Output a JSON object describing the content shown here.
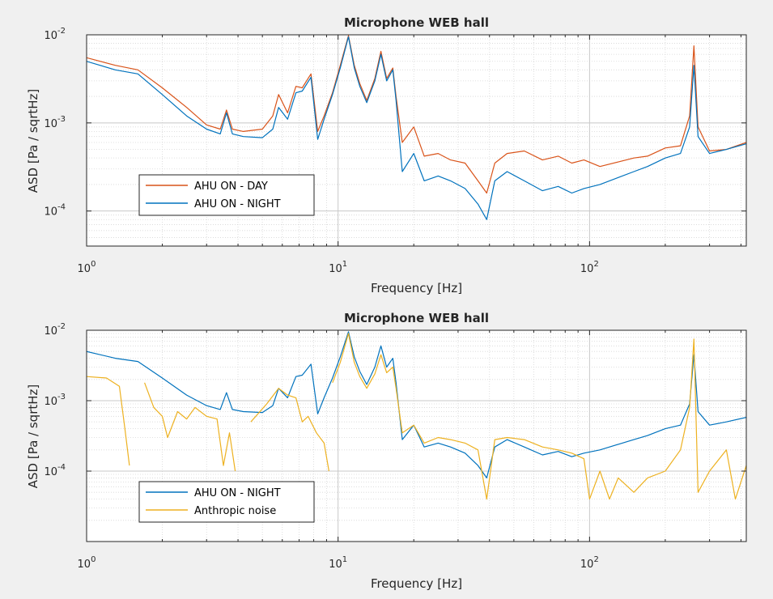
{
  "chart_data": [
    {
      "type": "line",
      "title": "Microphone WEB hall",
      "xlabel": "Frequency [Hz]",
      "ylabel": "ASD [Pa / sqrtHz]",
      "xscale": "log",
      "yscale": "log",
      "xlim": [
        1,
        420
      ],
      "ylim": [
        4e-05,
        0.01
      ],
      "grid": "on",
      "legend_position": "bottom-left",
      "xticks": [
        {
          "value": 1,
          "base": "10",
          "exp": "0"
        },
        {
          "value": 10,
          "base": "10",
          "exp": "1"
        },
        {
          "value": 100,
          "base": "10",
          "exp": "2"
        }
      ],
      "yticks": [
        {
          "value": 0.0001,
          "base": "10",
          "exp": "-4"
        },
        {
          "value": 0.001,
          "base": "10",
          "exp": "-3"
        },
        {
          "value": 0.01,
          "base": "10",
          "exp": "-2"
        }
      ],
      "series": [
        {
          "name": "AHU ON - DAY",
          "color": "#d95319",
          "x": [
            1,
            1.3,
            1.6,
            2,
            2.5,
            3,
            3.4,
            3.6,
            3.8,
            4.2,
            5,
            5.5,
            5.8,
            6.3,
            6.8,
            7.2,
            7.8,
            8.3,
            8.8,
            9.5,
            10.2,
            11,
            11.6,
            12.2,
            13,
            14,
            14.8,
            15.6,
            16.5,
            17,
            18,
            20,
            22,
            25,
            28,
            32,
            36,
            39,
            42,
            47,
            55,
            65,
            75,
            85,
            95,
            110,
            130,
            150,
            170,
            200,
            230,
            250,
            260,
            270,
            300,
            350,
            420
          ],
          "values": [
            0.0055,
            0.0045,
            0.004,
            0.0025,
            0.0015,
            0.00095,
            0.00085,
            0.0014,
            0.00085,
            0.0008,
            0.00085,
            0.0012,
            0.0021,
            0.0013,
            0.0026,
            0.0025,
            0.0036,
            0.0008,
            0.0012,
            0.0022,
            0.0045,
            0.0098,
            0.0045,
            0.0028,
            0.0018,
            0.0032,
            0.0065,
            0.0032,
            0.0042,
            0.002,
            0.0006,
            0.0009,
            0.00042,
            0.00045,
            0.00038,
            0.00035,
            0.00022,
            0.00016,
            0.00035,
            0.00045,
            0.00048,
            0.00038,
            0.00042,
            0.00035,
            0.00038,
            0.00032,
            0.00036,
            0.0004,
            0.00042,
            0.00052,
            0.00055,
            0.0012,
            0.0075,
            0.0009,
            0.00048,
            0.0005,
            0.0006
          ]
        },
        {
          "name": "AHU ON - NIGHT",
          "color": "#0072bd",
          "x": [
            1,
            1.3,
            1.6,
            2,
            2.5,
            3,
            3.4,
            3.6,
            3.8,
            4.2,
            5,
            5.5,
            5.8,
            6.3,
            6.8,
            7.2,
            7.8,
            8.3,
            8.8,
            9.5,
            10.2,
            11,
            11.6,
            12.2,
            13,
            14,
            14.8,
            15.6,
            16.5,
            17,
            18,
            20,
            22,
            25,
            28,
            32,
            36,
            39,
            42,
            47,
            55,
            65,
            75,
            85,
            95,
            110,
            130,
            150,
            170,
            200,
            230,
            250,
            260,
            270,
            300,
            350,
            420
          ],
          "values": [
            0.005,
            0.004,
            0.0036,
            0.0021,
            0.0012,
            0.00085,
            0.00075,
            0.0013,
            0.00075,
            0.0007,
            0.00068,
            0.00085,
            0.0015,
            0.0011,
            0.0022,
            0.0023,
            0.0033,
            0.00065,
            0.0011,
            0.0021,
            0.0042,
            0.0095,
            0.0042,
            0.0026,
            0.0017,
            0.003,
            0.006,
            0.003,
            0.004,
            0.0018,
            0.00028,
            0.00045,
            0.00022,
            0.00025,
            0.00022,
            0.00018,
            0.00012,
            8e-05,
            0.00022,
            0.00028,
            0.00022,
            0.00017,
            0.00019,
            0.00016,
            0.00018,
            0.0002,
            0.00024,
            0.00028,
            0.00032,
            0.0004,
            0.00045,
            0.0009,
            0.0045,
            0.0007,
            0.00045,
            0.0005,
            0.00058
          ]
        }
      ]
    },
    {
      "type": "line",
      "title": "Microphone WEB hall",
      "xlabel": "Frequency [Hz]",
      "ylabel": "ASD [Pa / sqrtHz]",
      "xscale": "log",
      "yscale": "log",
      "xlim": [
        1,
        420
      ],
      "ylim": [
        1e-05,
        0.01
      ],
      "grid": "on",
      "legend_position": "bottom-left",
      "xticks": [
        {
          "value": 1,
          "base": "10",
          "exp": "0"
        },
        {
          "value": 10,
          "base": "10",
          "exp": "1"
        },
        {
          "value": 100,
          "base": "10",
          "exp": "2"
        }
      ],
      "yticks": [
        {
          "value": 0.0001,
          "base": "10",
          "exp": "-4"
        },
        {
          "value": 0.001,
          "base": "10",
          "exp": "-3"
        },
        {
          "value": 0.01,
          "base": "10",
          "exp": "-2"
        }
      ],
      "series": [
        {
          "name": "AHU ON - NIGHT",
          "color": "#0072bd",
          "x": [
            1,
            1.3,
            1.6,
            2,
            2.5,
            3,
            3.4,
            3.6,
            3.8,
            4.2,
            5,
            5.5,
            5.8,
            6.3,
            6.8,
            7.2,
            7.8,
            8.3,
            8.8,
            9.5,
            10.2,
            11,
            11.6,
            12.2,
            13,
            14,
            14.8,
            15.6,
            16.5,
            17,
            18,
            20,
            22,
            25,
            28,
            32,
            36,
            39,
            42,
            47,
            55,
            65,
            75,
            85,
            95,
            110,
            130,
            150,
            170,
            200,
            230,
            250,
            260,
            270,
            300,
            350,
            420
          ],
          "values": [
            0.005,
            0.004,
            0.0036,
            0.0021,
            0.0012,
            0.00085,
            0.00075,
            0.0013,
            0.00075,
            0.0007,
            0.00068,
            0.00085,
            0.0015,
            0.0011,
            0.0022,
            0.0023,
            0.0033,
            0.00065,
            0.0011,
            0.0021,
            0.0042,
            0.0095,
            0.0042,
            0.0026,
            0.0017,
            0.003,
            0.006,
            0.003,
            0.004,
            0.0018,
            0.00028,
            0.00045,
            0.00022,
            0.00025,
            0.00022,
            0.00018,
            0.00012,
            8e-05,
            0.00022,
            0.00028,
            0.00022,
            0.00017,
            0.00019,
            0.00016,
            0.00018,
            0.0002,
            0.00024,
            0.00028,
            0.00032,
            0.0004,
            0.00045,
            0.0009,
            0.0045,
            0.0007,
            0.00045,
            0.0005,
            0.00058
          ]
        },
        {
          "name": "Anthropic noise",
          "color": "#edb120",
          "segments": [
            {
              "x": [
                1,
                1.2,
                1.35,
                1.42,
                1.48
              ],
              "values": [
                0.0022,
                0.0021,
                0.0016,
                0.0004,
                0.00012
              ]
            },
            {
              "x": [
                1.7,
                1.85,
                2,
                2.1,
                2.3,
                2.5,
                2.7,
                3,
                3.3,
                3.5,
                3.7,
                3.9
              ],
              "values": [
                0.0018,
                0.0008,
                0.0006,
                0.0003,
                0.0007,
                0.00055,
                0.0008,
                0.0006,
                0.00055,
                0.00012,
                0.00035,
                0.0001
              ]
            },
            {
              "x": [
                4.5,
                5.2,
                5.8,
                6.3,
                6.8,
                7.2,
                7.6,
                8.2,
                8.8,
                9.2
              ],
              "values": [
                0.0005,
                0.0009,
                0.0015,
                0.0012,
                0.0011,
                0.0005,
                0.0006,
                0.00035,
                0.00025,
                0.0001
              ]
            },
            {
              "x": [
                9.5,
                10.2,
                11,
                11.6,
                12.2,
                13,
                14,
                14.8,
                15.6,
                16.5,
                17,
                18,
                20,
                22,
                25,
                28,
                32,
                36,
                39,
                42,
                47,
                55,
                65,
                75,
                85,
                95,
                100,
                110,
                120,
                130,
                150,
                170,
                200,
                230,
                250,
                260,
                270,
                300,
                350,
                380,
                420
              ],
              "values": [
                0.0018,
                0.0035,
                0.009,
                0.0035,
                0.0022,
                0.0015,
                0.0024,
                0.0045,
                0.0025,
                0.003,
                0.0015,
                0.00035,
                0.00045,
                0.00025,
                0.0003,
                0.00028,
                0.00025,
                0.0002,
                4e-05,
                0.00028,
                0.0003,
                0.00028,
                0.00022,
                0.0002,
                0.00018,
                0.00015,
                4e-05,
                0.0001,
                4e-05,
                8e-05,
                5e-05,
                8e-05,
                0.0001,
                0.0002,
                0.0008,
                0.0075,
                5e-05,
                0.0001,
                0.0002,
                4e-05,
                0.00012
              ]
            }
          ]
        }
      ]
    }
  ]
}
